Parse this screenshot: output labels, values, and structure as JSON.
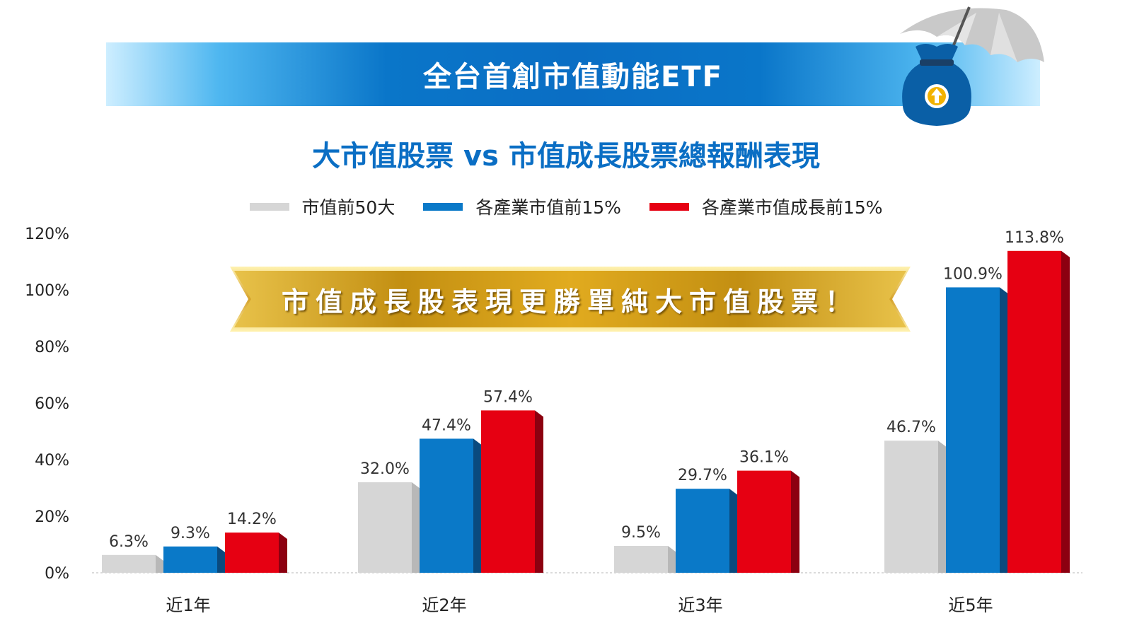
{
  "banner": {
    "title": "全台首創市值動能ETF"
  },
  "headline": "市值成長股表現更勝單純大市值股票！",
  "chart_data": {
    "type": "bar",
    "title": "大市值股票 vs 市值成長股票總報酬表現",
    "categories": [
      "近1年",
      "近2年",
      "近3年",
      "近5年"
    ],
    "series": [
      {
        "name": "市值前50大",
        "color": "#d6d6d6",
        "side_color": "#b8b8b8",
        "values": [
          6.3,
          32.0,
          9.5,
          46.7
        ]
      },
      {
        "name": "各產業市值前15%",
        "color": "#0a79c8",
        "side_color": "#0a4a7e",
        "values": [
          9.3,
          47.4,
          29.7,
          100.9
        ]
      },
      {
        "name": "各產業市值成長前15%",
        "color": "#e60012",
        "side_color": "#8c0010",
        "values": [
          14.2,
          57.4,
          36.1,
          113.8
        ]
      }
    ],
    "data_labels": [
      [
        "6.3%",
        "32.0%",
        "9.5%",
        "46.7%"
      ],
      [
        "9.3%",
        "47.4%",
        "29.7%",
        "100.9%"
      ],
      [
        "14.2%",
        "57.4%",
        "36.1%",
        "113.8%"
      ]
    ],
    "yticks": [
      0,
      20,
      40,
      60,
      80,
      100,
      120
    ],
    "ytick_labels": [
      "0%",
      "20%",
      "40%",
      "60%",
      "80%",
      "100%",
      "120%"
    ],
    "ylim": [
      0,
      120
    ],
    "xlabel": "",
    "ylabel": "",
    "grid": false,
    "legend_position": "top-center"
  },
  "icons": {
    "decoration": "money-bag-umbrella-icon"
  },
  "colors": {
    "brand_blue": "#0a6ec4",
    "gold": "#e0ac1c",
    "red": "#e60012"
  }
}
